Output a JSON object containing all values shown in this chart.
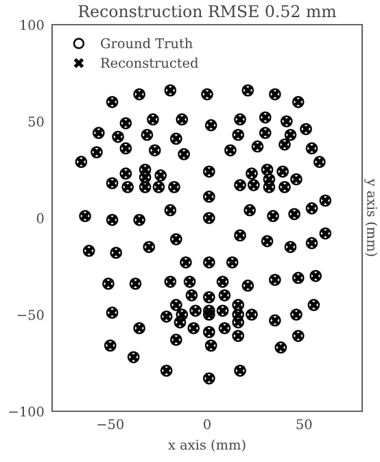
{
  "chart_data": {
    "type": "scatter",
    "title": "Reconstruction RMSE 0.52 mm",
    "xlabel": "x axis (mm)",
    "ylabel": "y axis (mm)",
    "x": [
      -49,
      -35,
      -19,
      0,
      21,
      35,
      47,
      -56,
      -42,
      -28,
      -13,
      2,
      17,
      30,
      41,
      51,
      -46,
      -31,
      -16,
      16,
      30,
      43,
      -57,
      -42,
      -27,
      -12,
      12,
      26,
      40,
      54,
      58,
      -65,
      -42,
      -32,
      -24,
      1,
      23,
      31,
      39,
      -49,
      -32,
      -32,
      -41,
      -25,
      -17,
      17,
      24,
      32,
      32,
      40,
      46,
      1,
      -63,
      -49,
      -35,
      -19,
      1,
      22,
      34,
      45,
      54,
      61,
      -61,
      -47,
      -30,
      -16,
      17,
      31,
      43,
      54,
      61,
      -11,
      1,
      13,
      -51,
      -37,
      -19,
      -9,
      8,
      21,
      35,
      47,
      56,
      -8,
      1,
      9,
      -49,
      -21,
      -16,
      -13,
      -14,
      -6,
      1,
      1,
      8,
      16,
      16,
      16,
      23,
      35,
      46,
      55,
      -35,
      -7,
      1,
      9,
      -16,
      16,
      47,
      -50,
      2,
      38,
      -38,
      -21,
      17,
      1
    ],
    "series": [
      {
        "name": "Ground Truth",
        "color": "#000000",
        "marker": "circle",
        "values": [
          60,
          64,
          66,
          64,
          66,
          64,
          60,
          44,
          49,
          51,
          51,
          48,
          51,
          52,
          50,
          46,
          42,
          43,
          41,
          43,
          44,
          43,
          34,
          36,
          35,
          33,
          35,
          37,
          38,
          36,
          29,
          29,
          23,
          25,
          22,
          24,
          23,
          25,
          24,
          18,
          21,
          16,
          16,
          16,
          16,
          17,
          17,
          20,
          16,
          16,
          20,
          11,
          1,
          -1,
          -1,
          4,
          0,
          4,
          1,
          2,
          5,
          9,
          -17,
          -18,
          -15,
          -11,
          -9,
          -12,
          -15,
          -13,
          -8,
          -23,
          -23,
          -23,
          -34,
          -34,
          -33,
          -33,
          -33,
          -35,
          -32,
          -31,
          -30,
          -40,
          -41,
          -40,
          -49,
          -51,
          -45,
          -50,
          -54,
          -48,
          -48,
          -50,
          -48,
          -45,
          -50,
          -54,
          -50,
          -53,
          -50,
          -45,
          -57,
          -57,
          -59,
          -57,
          -63,
          -61,
          -61,
          -66,
          -66,
          -67,
          -72,
          -79,
          -79,
          -83
        ]
      },
      {
        "name": "Reconstructed",
        "color": "#000000",
        "marker": "cross",
        "values": [
          60,
          64,
          66,
          64,
          66,
          64,
          60,
          44,
          49,
          51,
          51,
          48,
          51,
          52,
          50,
          46,
          42,
          43,
          41,
          43,
          44,
          43,
          34,
          36,
          35,
          33,
          35,
          37,
          38,
          36,
          29,
          29,
          23,
          25,
          22,
          24,
          23,
          25,
          24,
          18,
          21,
          16,
          16,
          16,
          16,
          17,
          17,
          20,
          16,
          16,
          20,
          11,
          1,
          -1,
          -1,
          4,
          0,
          4,
          1,
          2,
          5,
          9,
          -17,
          -18,
          -15,
          -11,
          -9,
          -12,
          -15,
          -13,
          -8,
          -23,
          -23,
          -23,
          -34,
          -34,
          -33,
          -33,
          -33,
          -35,
          -32,
          -31,
          -30,
          -40,
          -41,
          -40,
          -49,
          -51,
          -45,
          -50,
          -54,
          -48,
          -48,
          -50,
          -48,
          -45,
          -50,
          -54,
          -50,
          -53,
          -50,
          -45,
          -57,
          -57,
          -59,
          -57,
          -63,
          -61,
          -61,
          -66,
          -66,
          -67,
          -72,
          -79,
          -79,
          -83
        ]
      }
    ],
    "xlim": [
      -80,
      80
    ],
    "ylim": [
      -100,
      100
    ],
    "xticks": [
      -50,
      0,
      50
    ],
    "yticks": [
      -100,
      -50,
      0,
      50,
      100
    ],
    "legend": "top left",
    "grid": false
  }
}
